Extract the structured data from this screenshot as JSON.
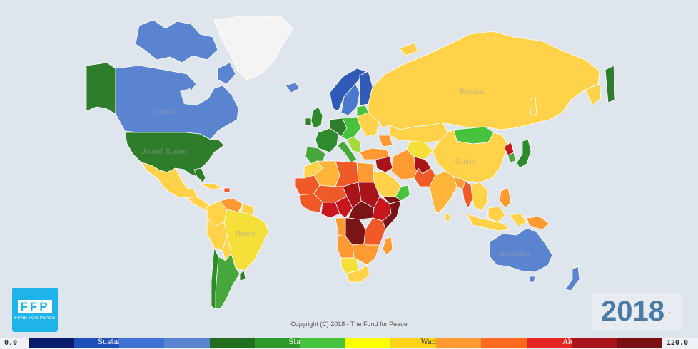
{
  "year": "2018",
  "year_suffix": "·",
  "copyright": "Copyright (C) 2018 - The Fund for Peace",
  "logo": {
    "mark": "FFP",
    "text": "FUND FOR PEACE"
  },
  "legend": {
    "min": "0.0",
    "max": "120.0",
    "segments": [
      {
        "color": "#0a1d6b",
        "label": ""
      },
      {
        "color": "#1f4fb8",
        "label": "Sustainable"
      },
      {
        "color": "#3e73d3",
        "label": ""
      },
      {
        "color": "#5a84cf",
        "label": ""
      },
      {
        "color": "#206e1e",
        "label": ""
      },
      {
        "color": "#2e9a2a",
        "label": "Stable"
      },
      {
        "color": "#46c23c",
        "label": ""
      },
      {
        "color": "#ffff00",
        "label": ""
      },
      {
        "color": "#ffd21a",
        "label": "Warning"
      },
      {
        "color": "#ff9932",
        "label": ""
      },
      {
        "color": "#ff6a1f",
        "label": ""
      },
      {
        "color": "#e32421",
        "label": "Alert"
      },
      {
        "color": "#a9131a",
        "label": ""
      },
      {
        "color": "#7a0f14",
        "label": ""
      }
    ]
  },
  "map_labels": {
    "russia": "Russia",
    "china": "China",
    "canada": "Canada",
    "united_states": "United States",
    "brazil": "Brazil",
    "australia": "Australia"
  },
  "colors": {
    "ocean": "#dfe5ec",
    "greenland": "#f4f4f4",
    "sustainable_blue": "#5a84cf",
    "dark_blue": "#2f5ab8",
    "stable_green": "#2e8b2c",
    "light_green": "#46c23c",
    "yellow": "#f5e03a",
    "warning": "#ffd24a",
    "orange": "#ff9932",
    "red_orange": "#f05a28",
    "alert_red": "#c8161d",
    "dark_red": "#7a1517"
  }
}
